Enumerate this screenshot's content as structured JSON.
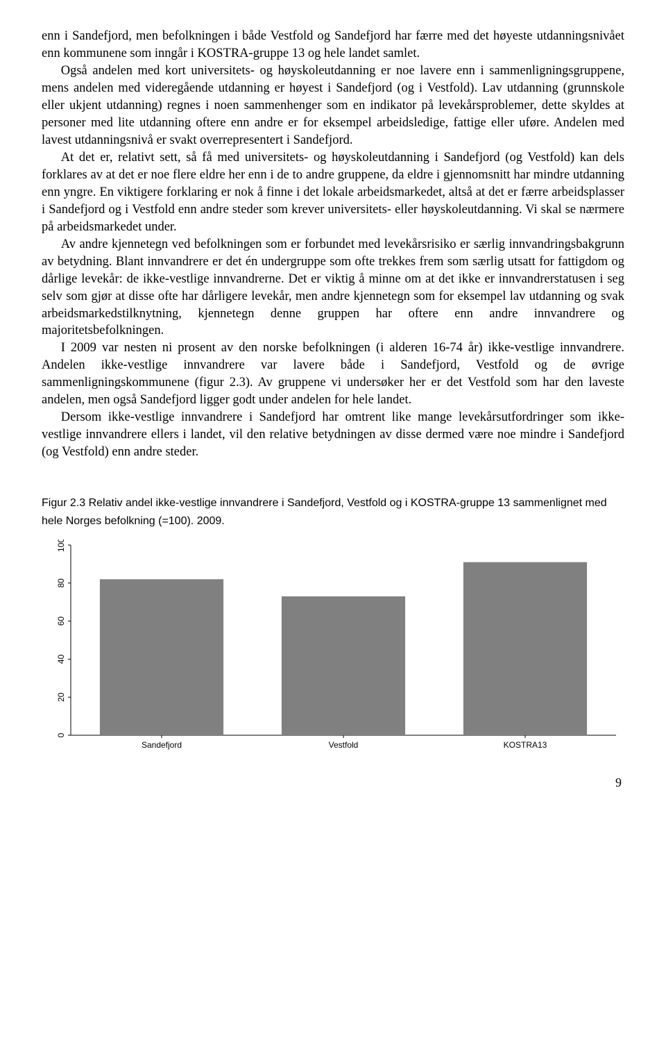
{
  "paragraphs": {
    "p1": "enn i Sandefjord, men befolkningen i både Vestfold og Sandefjord har færre med det høyeste utdanningsnivået enn kommunene som inngår i KOSTRA-gruppe 13 og hele landet samlet.",
    "p2": "Også andelen med kort universitets- og høyskoleutdanning er noe lavere enn i sammenligningsgruppene, mens andelen med videregående utdanning er høyest i Sandefjord (og i Vestfold). Lav utdanning (grunnskole eller ukjent utdanning) regnes i noen sammenhenger som en indikator på levekårsproblemer, dette skyldes at personer med lite utdanning oftere enn andre er for eksempel arbeidsledige, fattige eller uføre. Andelen med lavest utdanningsnivå er svakt overrepresentert i Sandefjord.",
    "p3": "At det er, relativt sett, så få med universitets- og høyskoleutdanning i Sandefjord (og Vestfold) kan dels forklares av at det er noe flere eldre her enn i de to andre gruppene, da eldre i gjennomsnitt har mindre utdanning enn yngre. En viktigere forklaring er nok å finne i det lokale arbeidsmarkedet, altså at det er færre arbeidsplasser i Sandefjord og i Vestfold enn andre steder som krever universitets- eller høyskoleutdanning. Vi skal se nærmere på arbeidsmarkedet under.",
    "p4": "Av andre kjennetegn ved befolkningen som er forbundet med levekårsrisiko er særlig innvandringsbakgrunn av betydning. Blant innvandrere er det én undergruppe som ofte trekkes frem som særlig utsatt for fattigdom og dårlige levekår: de ikke-vestlige innvandrerne. Det er viktig å minne om at det ikke er innvandrerstatusen i seg selv som gjør at disse ofte har dårligere levekår, men andre kjennetegn som for eksempel lav utdanning og svak arbeidsmarkedstilknytning, kjennetegn denne gruppen har oftere enn andre innvandrere og majoritetsbefolkningen.",
    "p5": "I 2009 var nesten ni prosent av den norske befolkningen (i alderen 16-74 år) ikke-vestlige innvandrere. Andelen ikke-vestlige innvandrere var lavere både i Sandefjord, Vestfold og de øvrige sammenligningskommunene (figur 2.3). Av gruppene vi undersøker her er det Vestfold som har den laveste andelen, men også Sandefjord ligger godt under andelen for hele landet.",
    "p6": "Dersom ikke-vestlige innvandrere i Sandefjord har omtrent like mange levekårsutfordringer som ikke-vestlige innvandrere ellers i landet, vil den relative betydningen av disse dermed være noe mindre i Sandefjord (og Vestfold) enn andre steder."
  },
  "figure": {
    "caption": "Figur 2.3 Relativ andel ikke-vestlige innvandrere i Sandefjord, Vestfold og i KOSTRA-gruppe 13 sammenlignet med hele Norges befolkning (=100). 2009.",
    "type": "bar",
    "categories": [
      "Sandefjord",
      "Vestfold",
      "KOSTRA13"
    ],
    "values": [
      82,
      73,
      91
    ],
    "bar_color": "#808080",
    "background_color": "#ffffff",
    "axis_color": "#000000",
    "ylim": [
      0,
      100
    ],
    "ytick_step": 20,
    "yticks": [
      "0",
      "20",
      "40",
      "60",
      "80",
      "100"
    ],
    "bar_width_ratio": 0.68,
    "label_fontsize": 12,
    "label_font": "Arial"
  },
  "page_number": "9"
}
